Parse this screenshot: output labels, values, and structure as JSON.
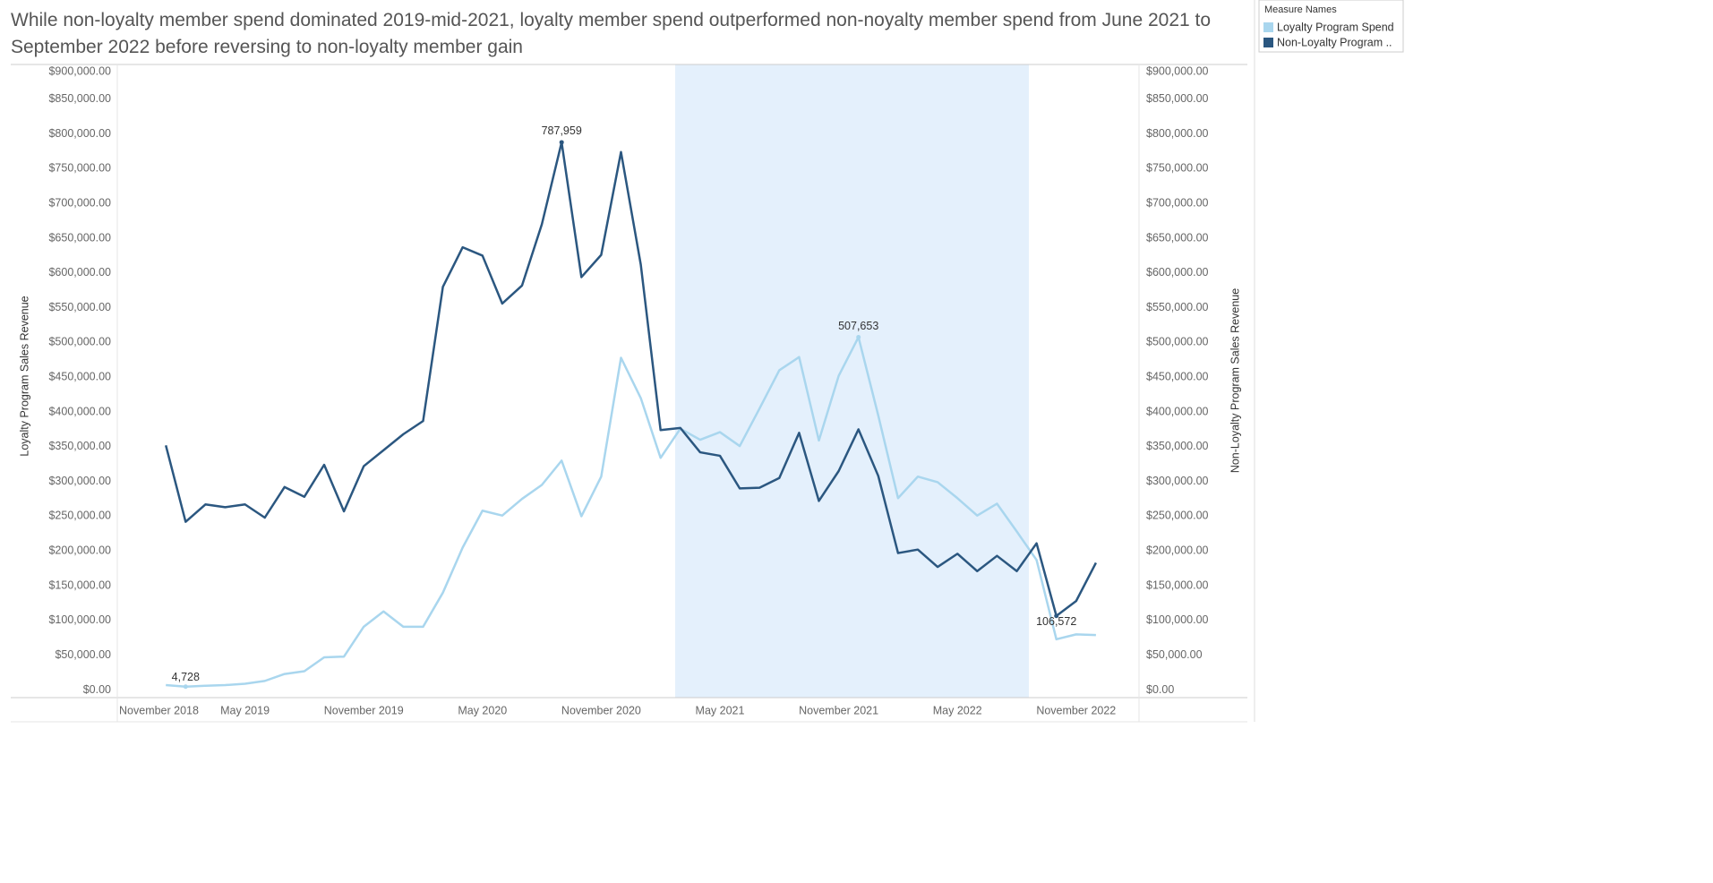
{
  "chart_data": {
    "type": "line",
    "title": "While non-loyalty member spend dominated 2019-mid-2021, loyalty member spend outperformed non-noyalty member spend from June 2021 to September 2022 before reversing to non-loyalty member gain",
    "y_label": "Loyalty Program Sales Revenue",
    "y2_label": "Non-Loyalty Program Sales Revenue",
    "legend_title": "Measure Names",
    "legend": "top-right",
    "grid": false,
    "categories": [
      "November 2018",
      null,
      null,
      null,
      null,
      null,
      "May 2019",
      null,
      null,
      null,
      null,
      null,
      "November 2019",
      null,
      null,
      null,
      null,
      null,
      "May 2020",
      null,
      null,
      null,
      null,
      null,
      "November 2020",
      null,
      null,
      null,
      null,
      null,
      "May 2021",
      null,
      null,
      null,
      null,
      null,
      "November 2021",
      null,
      null,
      null,
      null,
      null,
      "May 2022",
      null,
      null,
      null,
      null,
      null,
      "November 2022",
      null
    ],
    "series": [
      {
        "name": "Loyalty Program Spend",
        "color": "#a9d6ee",
        "axis": "y",
        "values": [
          null,
          null,
          7000,
          4728,
          6000,
          7000,
          9000,
          13000,
          23000,
          27000,
          47000,
          48000,
          91000,
          113000,
          91000,
          91000,
          140000,
          205000,
          258000,
          251000,
          275000,
          295000,
          330000,
          250000,
          307000,
          478000,
          420000,
          334000,
          376000,
          360000,
          371000,
          351000,
          405000,
          460000,
          479000,
          359000,
          452000,
          507653,
          395000,
          276000,
          307000,
          299000,
          276000,
          251000,
          268000,
          228000,
          187000,
          73000,
          80000,
          79000
        ],
        "value_labels": [
          null,
          null,
          null,
          "4,728",
          null,
          null,
          null,
          null,
          null,
          null,
          null,
          null,
          null,
          null,
          null,
          null,
          null,
          null,
          null,
          null,
          null,
          null,
          null,
          null,
          null,
          null,
          null,
          null,
          null,
          null,
          null,
          null,
          null,
          null,
          null,
          null,
          null,
          "507,653",
          null,
          null,
          null,
          null,
          null,
          null,
          null,
          null,
          null,
          null,
          null,
          null
        ]
      },
      {
        "name": "Non-Loyalty Program ..",
        "color": "#2b5780",
        "axis": "y2",
        "values": [
          null,
          null,
          352000,
          242000,
          267000,
          263000,
          267000,
          248000,
          292000,
          278000,
          324000,
          257000,
          322000,
          345000,
          368000,
          387000,
          580000,
          637000,
          625000,
          556000,
          582000,
          670000,
          787959,
          594000,
          626000,
          774000,
          612000,
          374000,
          377000,
          342000,
          337000,
          290000,
          291000,
          305000,
          370000,
          272000,
          315000,
          375000,
          308000,
          197000,
          202000,
          177000,
          196000,
          171000,
          193000,
          171000,
          211000,
          106572,
          128000,
          183000
        ],
        "value_labels": [
          null,
          null,
          null,
          null,
          null,
          null,
          null,
          null,
          null,
          null,
          null,
          null,
          null,
          null,
          null,
          null,
          null,
          null,
          null,
          null,
          null,
          null,
          "787,959",
          null,
          null,
          null,
          null,
          null,
          null,
          null,
          null,
          null,
          null,
          null,
          null,
          null,
          null,
          null,
          null,
          null,
          null,
          null,
          null,
          null,
          null,
          null,
          null,
          "106,572",
          null,
          null
        ]
      }
    ],
    "ylim": [
      -11000,
      900000
    ],
    "yticks": [
      {
        "value": 0,
        "label": "$0.00"
      },
      {
        "value": 50000,
        "label": "$50,000.00"
      },
      {
        "value": 100000,
        "label": "$100,000.00"
      },
      {
        "value": 150000,
        "label": "$150,000.00"
      },
      {
        "value": 200000,
        "label": "$200,000.00"
      },
      {
        "value": 250000,
        "label": "$250,000.00"
      },
      {
        "value": 300000,
        "label": "$300,000.00"
      },
      {
        "value": 350000,
        "label": "$350,000.00"
      },
      {
        "value": 400000,
        "label": "$400,000.00"
      },
      {
        "value": 450000,
        "label": "$450,000.00"
      },
      {
        "value": 500000,
        "label": "$500,000.00"
      },
      {
        "value": 550000,
        "label": "$550,000.00"
      },
      {
        "value": 600000,
        "label": "$600,000.00"
      },
      {
        "value": 650000,
        "label": "$650,000.00"
      },
      {
        "value": 700000,
        "label": "$700,000.00"
      },
      {
        "value": 750000,
        "label": "$750,000.00"
      },
      {
        "value": 800000,
        "label": "$800,000.00"
      },
      {
        "value": 850000,
        "label": "$850,000.00"
      },
      {
        "value": 900000,
        "label": "$900,000.00"
      }
    ],
    "y2lim": [
      -11000,
      900000
    ],
    "y2ticks": [
      {
        "value": 0,
        "label": "$0.00"
      },
      {
        "value": 50000,
        "label": "$50,000.00"
      },
      {
        "value": 100000,
        "label": "$100,000.00"
      },
      {
        "value": 150000,
        "label": "$150,000.00"
      },
      {
        "value": 200000,
        "label": "$200,000.00"
      },
      {
        "value": 250000,
        "label": "$250,000.00"
      },
      {
        "value": 300000,
        "label": "$300,000.00"
      },
      {
        "value": 350000,
        "label": "$350,000.00"
      },
      {
        "value": 400000,
        "label": "$400,000.00"
      },
      {
        "value": 450000,
        "label": "$450,000.00"
      },
      {
        "value": 500000,
        "label": "$500,000.00"
      },
      {
        "value": 550000,
        "label": "$550,000.00"
      },
      {
        "value": 600000,
        "label": "$600,000.00"
      },
      {
        "value": 650000,
        "label": "$650,000.00"
      },
      {
        "value": 700000,
        "label": "$700,000.00"
      },
      {
        "value": 750000,
        "label": "$750,000.00"
      },
      {
        "value": 800000,
        "label": "$800,000.00"
      },
      {
        "value": 850000,
        "label": "$850,000.00"
      },
      {
        "value": 900000,
        "label": "$900,000.00"
      }
    ]
  }
}
